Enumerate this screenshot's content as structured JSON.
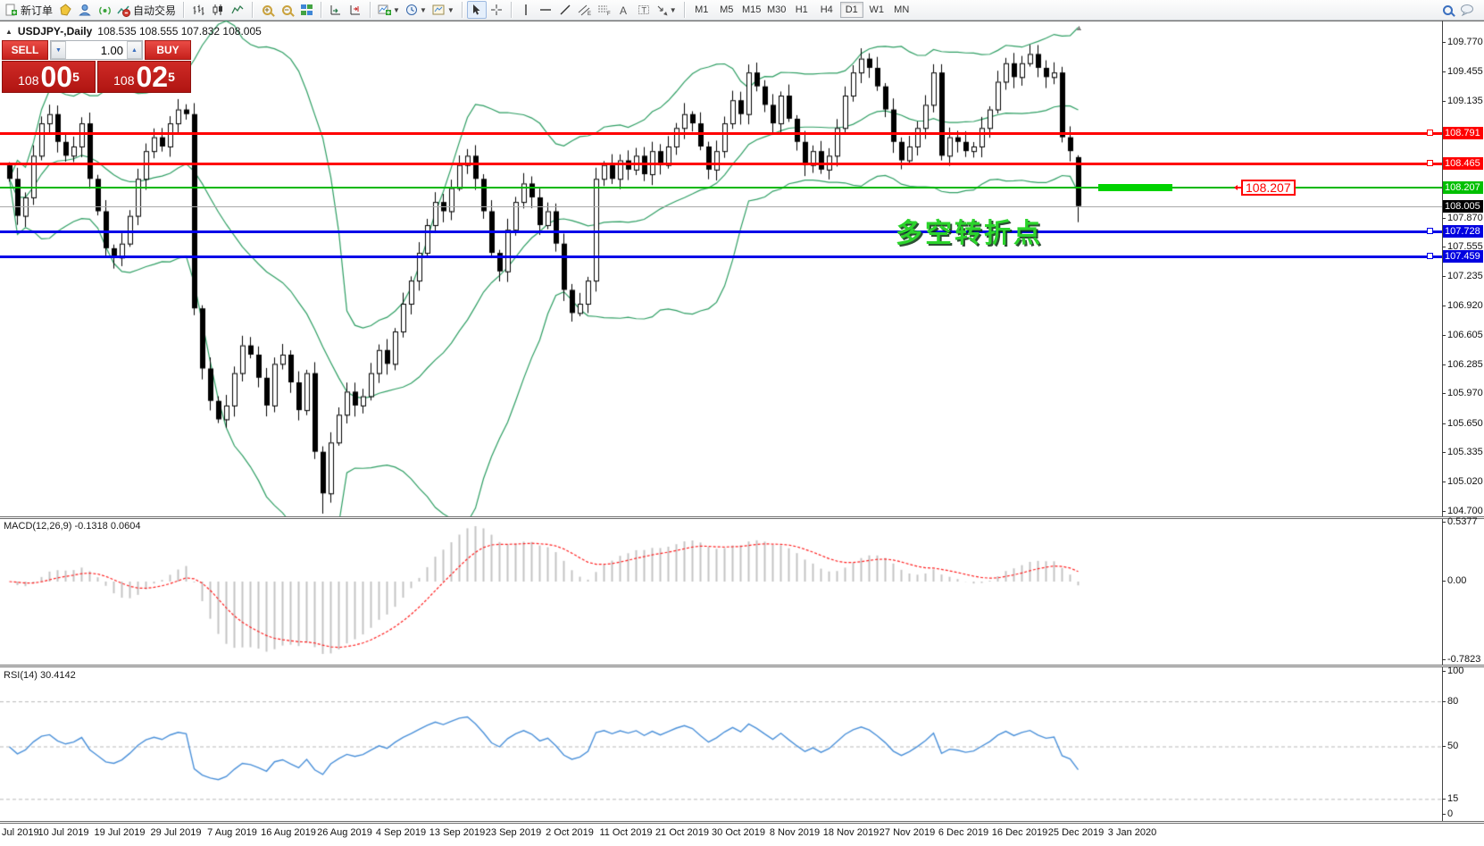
{
  "toolbar": {
    "new_order_label": "新订单",
    "autotrading_label": "自动交易",
    "timeframes": [
      "M1",
      "M5",
      "M15",
      "M30",
      "H1",
      "H4",
      "D1",
      "W1",
      "MN"
    ],
    "active_timeframe": "D1",
    "icons": [
      "new-order-icon",
      "metaeditor-icon",
      "community-icon",
      "signal-icon",
      "autotrading-icon",
      "bar-chart-icon",
      "candlestick-icon",
      "line-chart-icon",
      "zoom-in-icon",
      "zoom-out-icon",
      "tile-windows-icon",
      "auto-scroll-icon",
      "chart-shift-icon",
      "indicators-icon",
      "periods-icon",
      "templates-icon",
      "cursor-icon",
      "crosshair-icon",
      "vertical-line-icon",
      "horizontal-line-icon",
      "trendline-icon",
      "channel-icon",
      "fibonacci-icon",
      "text-icon",
      "text-label-icon",
      "arrows-icon",
      "search-icon",
      "chat-icon"
    ]
  },
  "chart": {
    "collapse_icon": "▲",
    "title_symbol": "USDJPY-,Daily",
    "title_ohlc": "108.535 108.555 107.832 108.005",
    "one_click": {
      "sell_label": "SELL",
      "buy_label": "BUY",
      "volume": "1.00",
      "sell_price": {
        "prefix": "108",
        "big": "00",
        "sup": "5"
      },
      "buy_price": {
        "prefix": "108",
        "big": "02",
        "sup": "5"
      }
    },
    "annotation_text": "多空转折点",
    "callout_label": "108.207",
    "band_color": "#2e9e63",
    "price_ticks": [
      "109.770",
      "109.455",
      "109.135",
      "107.870",
      "107.555",
      "107.235",
      "106.920",
      "106.605",
      "106.285",
      "105.970",
      "105.650",
      "105.335",
      "105.020",
      "104.700"
    ],
    "level_lines": [
      {
        "price": 108.791,
        "color": "#ff0000",
        "width": 3,
        "marker": true,
        "badge_bg": "#ff0000"
      },
      {
        "price": 108.465,
        "color": "#ff0000",
        "width": 3,
        "marker": true,
        "badge_bg": "#ff0000"
      },
      {
        "price": 108.207,
        "color": "#00b800",
        "width": 2,
        "marker": false,
        "badge_bg": "#00c000"
      },
      {
        "price": 107.728,
        "color": "#0000e8",
        "width": 3,
        "marker": true,
        "badge_bg": "#0000e0"
      },
      {
        "price": 107.459,
        "color": "#0000e8",
        "width": 3,
        "marker": true,
        "badge_bg": "#0000e0"
      }
    ],
    "bid_line": {
      "price": 108.005,
      "color": "#a8a8a8",
      "badge_bg": "#000000"
    }
  },
  "macd_panel": {
    "label": "MACD(12,26,9) -0.1318 0.0604",
    "scale": [
      "0.5377",
      "0.00",
      "-0.7823"
    ],
    "histogram_color": "#c4c4c4",
    "signal_color": "#ff2020"
  },
  "rsi_panel": {
    "label": "RSI(14) 30.4142",
    "scale": [
      "100",
      "80",
      "50",
      "15",
      "0"
    ],
    "levels": [
      80,
      50,
      15
    ],
    "line_color": "#4a90d9"
  },
  "dates": [
    "Jul 2019",
    "10 Jul 2019",
    "19 Jul 2019",
    "29 Jul 2019",
    "7 Aug 2019",
    "16 Aug 2019",
    "26 Aug 2019",
    "4 Sep 2019",
    "13 Sep 2019",
    "23 Sep 2019",
    "2 Oct 2019",
    "11 Oct 2019",
    "21 Oct 2019",
    "30 Oct 2019",
    "8 Nov 2019",
    "18 Nov 2019",
    "27 Nov 2019",
    "6 Dec 2019",
    "16 Dec 2019",
    "25 Dec 2019",
    "3 Jan 2020"
  ],
  "chart_data": {
    "type": "candlestick",
    "symbol": "USDJPY-",
    "period": "Daily",
    "price_range": [
      104.7,
      109.77
    ],
    "last_ohlc": {
      "open": 108.535,
      "high": 108.555,
      "low": 107.832,
      "close": 108.005
    },
    "closes": [
      108.3,
      107.9,
      108.1,
      108.55,
      108.9,
      109.0,
      108.7,
      108.55,
      108.65,
      108.9,
      108.3,
      107.95,
      107.55,
      107.45,
      107.6,
      107.9,
      108.3,
      108.6,
      108.75,
      108.65,
      108.9,
      109.05,
      109.0,
      106.9,
      106.25,
      105.9,
      105.7,
      105.85,
      106.2,
      106.5,
      106.4,
      106.15,
      105.85,
      106.3,
      106.4,
      106.1,
      105.8,
      106.2,
      105.35,
      104.9,
      105.45,
      105.75,
      106.0,
      105.85,
      105.95,
      106.2,
      106.45,
      106.3,
      106.65,
      106.95,
      107.2,
      107.5,
      107.8,
      108.05,
      107.95,
      108.2,
      108.45,
      108.55,
      108.3,
      107.95,
      107.5,
      107.3,
      107.75,
      108.05,
      108.25,
      108.1,
      107.8,
      107.95,
      107.6,
      107.1,
      106.85,
      106.95,
      107.2,
      108.3,
      108.45,
      108.3,
      108.5,
      108.4,
      108.55,
      108.35,
      108.6,
      108.45,
      108.65,
      108.85,
      109.0,
      108.9,
      108.65,
      108.4,
      108.6,
      108.9,
      109.15,
      109.0,
      109.45,
      109.3,
      109.1,
      108.9,
      109.2,
      108.95,
      108.7,
      108.45,
      108.6,
      108.4,
      108.55,
      108.85,
      109.2,
      109.45,
      109.6,
      109.5,
      109.3,
      109.05,
      108.7,
      108.5,
      108.65,
      108.85,
      109.1,
      109.45,
      108.55,
      108.75,
      108.7,
      108.6,
      108.65,
      108.85,
      109.05,
      109.35,
      109.55,
      109.4,
      109.55,
      109.65,
      109.5,
      109.4,
      109.45,
      108.75,
      108.6,
      108.005
    ],
    "overlays": [
      {
        "name": "Bollinger Bands",
        "period": 20,
        "deviation": 2
      }
    ],
    "horizontal_levels": [
      108.791,
      108.465,
      108.207,
      107.728,
      107.459
    ],
    "indicators": [
      {
        "name": "MACD",
        "params": [
          12,
          26,
          9
        ],
        "current": [
          -0.1318,
          0.0604
        ],
        "scale_max": 0.5377,
        "scale_min": -0.7823
      },
      {
        "name": "RSI",
        "params": [
          14
        ],
        "current": 30.4142,
        "grid_levels": [
          80,
          50,
          15
        ],
        "range": [
          0,
          100
        ]
      }
    ]
  }
}
